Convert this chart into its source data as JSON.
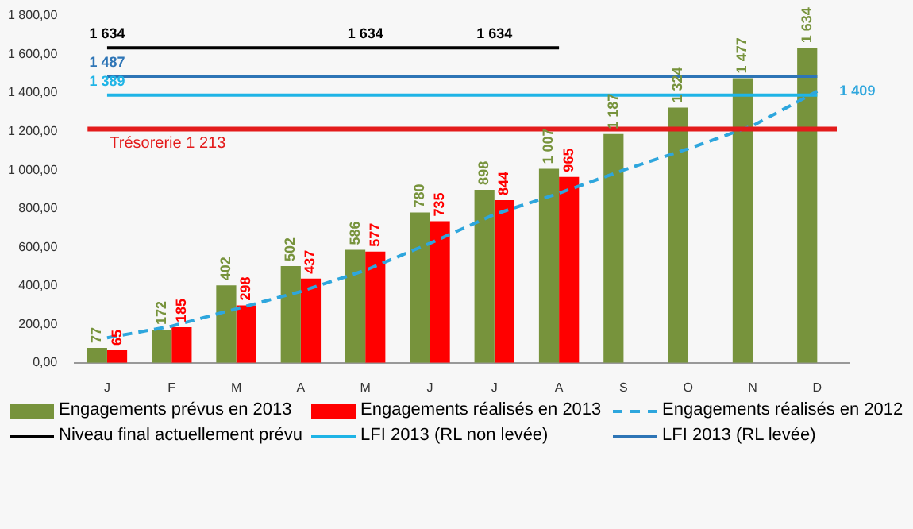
{
  "chart_data": {
    "type": "bar",
    "categories": [
      "J",
      "F",
      "M",
      "A",
      "M",
      "J",
      "J",
      "A",
      "S",
      "O",
      "N",
      "D"
    ],
    "ylim": [
      0,
      1800
    ],
    "yticks": [
      {
        "value": 0,
        "label": "0,00"
      },
      {
        "value": 200,
        "label": "200,00"
      },
      {
        "value": 400,
        "label": "400,00"
      },
      {
        "value": 600,
        "label": "600,00"
      },
      {
        "value": 800,
        "label": "800,00"
      },
      {
        "value": 1000,
        "label": "1 000,00"
      },
      {
        "value": 1200,
        "label": "1 200,00"
      },
      {
        "value": 1400,
        "label": "1 400,00"
      },
      {
        "value": 1600,
        "label": "1 600,00"
      },
      {
        "value": 1800,
        "label": "1 800,00"
      }
    ],
    "grid": false,
    "legend": "bottom",
    "series": [
      {
        "name": "Engagements prévus en 2013",
        "color": "#77933c",
        "values": [
          77,
          172,
          402,
          502,
          586,
          780,
          898,
          1007,
          1187,
          1324,
          1477,
          1634
        ],
        "value_labels": [
          "77",
          "172",
          "402",
          "502",
          "586",
          "780",
          "898",
          "1 007",
          "1 187",
          "1 324",
          "1 477",
          "1 634"
        ]
      },
      {
        "name": "Engagements réalisés en 2013",
        "color": "#ff0000",
        "values": [
          65,
          185,
          298,
          437,
          577,
          735,
          844,
          965,
          null,
          null,
          null,
          null
        ],
        "value_labels": [
          "65",
          "185",
          "298",
          "437",
          "577",
          "735",
          "844",
          "965",
          null,
          null,
          null,
          null
        ]
      },
      {
        "name": "Engagements réalisés en 2012",
        "type": "line",
        "line_style": "dashed",
        "color": "#2ea6dd",
        "values": [
          130,
          190,
          280,
          370,
          480,
          620,
          770,
          880,
          1000,
          1110,
          1230,
          1409
        ],
        "value_labels": [
          null,
          null,
          null,
          null,
          null,
          null,
          null,
          null,
          null,
          null,
          null,
          "1 409"
        ]
      },
      {
        "name": "Niveau final actuellement prévu",
        "type": "line",
        "line_style": "solid",
        "color": "#000000",
        "values": [
          1634,
          1634,
          1634,
          1634,
          1634,
          1634,
          1634,
          1634,
          null,
          null,
          null,
          null
        ],
        "value_labels": [
          "1 634",
          null,
          null,
          null,
          "1 634",
          null,
          "1 634",
          null,
          null,
          null,
          null,
          null
        ]
      },
      {
        "name": "LFI 2013 (RL non levée)",
        "type": "line",
        "line_style": "solid",
        "color": "#1fb4e6",
        "values": [
          1389,
          1389,
          1389,
          1389,
          1389,
          1389,
          1389,
          1389,
          1389,
          1389,
          1389,
          1389
        ],
        "value_labels": [
          "1 389",
          null,
          null,
          null,
          null,
          null,
          null,
          null,
          null,
          null,
          null,
          null
        ]
      },
      {
        "name": "LFI 2013 (RL levée)",
        "type": "line",
        "line_style": "solid",
        "color": "#2e75b6",
        "values": [
          1487,
          1487,
          1487,
          1487,
          1487,
          1487,
          1487,
          1487,
          1487,
          1487,
          1487,
          1487
        ],
        "value_labels": [
          "1 487",
          null,
          null,
          null,
          null,
          null,
          null,
          null,
          null,
          null,
          null,
          null
        ]
      }
    ],
    "ref_lines": [
      {
        "axis": "y",
        "value": 1213,
        "label": "Trésorerie 1 213",
        "color": "#e31b1b"
      }
    ]
  }
}
